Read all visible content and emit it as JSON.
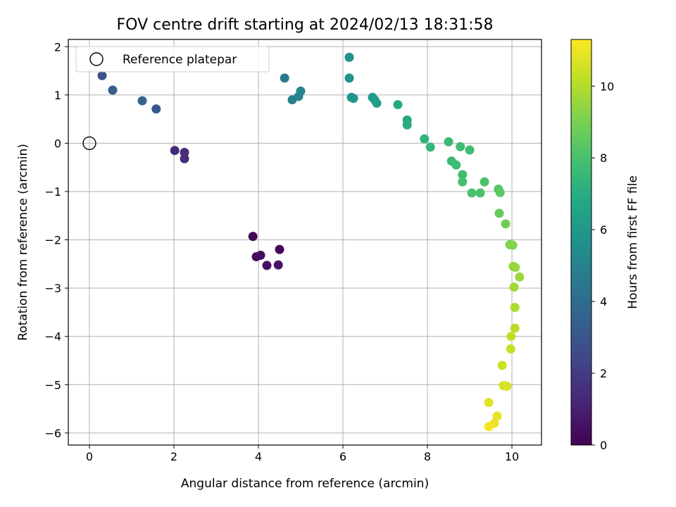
{
  "chart_data": {
    "type": "scatter",
    "title": "FOV centre drift starting at 2024/02/13 18:31:58",
    "xlabel": "Angular distance from reference (arcmin)",
    "ylabel": "Rotation from reference (arcmin)",
    "xlim": [
      -0.5,
      10.7
    ],
    "ylim": [
      -6.25,
      2.15
    ],
    "xticks": [
      0,
      2,
      4,
      6,
      8,
      10
    ],
    "xtick_labels": [
      "0",
      "2",
      "4",
      "6",
      "8",
      "10"
    ],
    "yticks": [
      2,
      1,
      0,
      -1,
      -2,
      -3,
      -4,
      -5,
      -6
    ],
    "ytick_labels": [
      "2",
      "1",
      "0",
      "−1",
      "−2",
      "−3",
      "−4",
      "−5",
      "−6"
    ],
    "grid": true,
    "legend": {
      "position": "top-left",
      "entries": [
        "Reference platepar"
      ]
    },
    "reference_point": {
      "x": 0,
      "y": 0
    },
    "colorbar": {
      "label": "Hours from first FF file",
      "colormap": "viridis",
      "range": [
        0,
        11.3
      ],
      "ticks": [
        0,
        2,
        4,
        6,
        8,
        10
      ],
      "tick_labels": [
        "0",
        "2",
        "4",
        "6",
        "8",
        "10"
      ]
    },
    "points": [
      {
        "x": 3.87,
        "y": -1.93,
        "c": 0.1
      },
      {
        "x": 4.5,
        "y": -2.2,
        "c": 0.2
      },
      {
        "x": 3.95,
        "y": -2.35,
        "c": 0.3
      },
      {
        "x": 4.05,
        "y": -2.32,
        "c": 0.4
      },
      {
        "x": 4.2,
        "y": -2.53,
        "c": 0.5
      },
      {
        "x": 4.47,
        "y": -2.52,
        "c": 0.6
      },
      {
        "x": 2.02,
        "y": -0.15,
        "c": 1.3
      },
      {
        "x": 2.25,
        "y": -0.19,
        "c": 1.4
      },
      {
        "x": 2.25,
        "y": -0.32,
        "c": 1.5
      },
      {
        "x": 0.3,
        "y": 1.4,
        "c": 2.9
      },
      {
        "x": 1.58,
        "y": 0.71,
        "c": 3.1
      },
      {
        "x": 0.55,
        "y": 1.1,
        "c": 3.4
      },
      {
        "x": 1.25,
        "y": 0.88,
        "c": 3.6
      },
      {
        "x": 4.62,
        "y": 1.35,
        "c": 4.6
      },
      {
        "x": 4.8,
        "y": 0.9,
        "c": 4.9
      },
      {
        "x": 4.95,
        "y": 0.97,
        "c": 5.0
      },
      {
        "x": 5.0,
        "y": 1.08,
        "c": 5.1
      },
      {
        "x": 6.15,
        "y": 1.78,
        "c": 5.6
      },
      {
        "x": 6.15,
        "y": 1.35,
        "c": 5.7
      },
      {
        "x": 6.2,
        "y": 0.95,
        "c": 5.9
      },
      {
        "x": 6.25,
        "y": 0.93,
        "c": 5.9
      },
      {
        "x": 6.7,
        "y": 0.95,
        "c": 6.2
      },
      {
        "x": 6.75,
        "y": 0.9,
        "c": 6.3
      },
      {
        "x": 6.8,
        "y": 0.83,
        "c": 6.4
      },
      {
        "x": 7.3,
        "y": 0.8,
        "c": 6.8
      },
      {
        "x": 7.52,
        "y": 0.48,
        "c": 6.9
      },
      {
        "x": 7.52,
        "y": 0.38,
        "c": 7.0
      },
      {
        "x": 7.93,
        "y": 0.09,
        "c": 7.3
      },
      {
        "x": 8.07,
        "y": -0.08,
        "c": 7.4
      },
      {
        "x": 8.5,
        "y": 0.03,
        "c": 7.6
      },
      {
        "x": 8.78,
        "y": -0.07,
        "c": 7.7
      },
      {
        "x": 9.0,
        "y": -0.14,
        "c": 7.8
      },
      {
        "x": 8.57,
        "y": -0.37,
        "c": 7.6
      },
      {
        "x": 8.68,
        "y": -0.45,
        "c": 7.7
      },
      {
        "x": 8.83,
        "y": -0.65,
        "c": 7.8
      },
      {
        "x": 8.83,
        "y": -0.8,
        "c": 7.9
      },
      {
        "x": 9.05,
        "y": -1.03,
        "c": 8.0
      },
      {
        "x": 9.25,
        "y": -1.03,
        "c": 8.0
      },
      {
        "x": 9.35,
        "y": -0.8,
        "c": 8.1
      },
      {
        "x": 9.68,
        "y": -0.95,
        "c": 8.3
      },
      {
        "x": 9.72,
        "y": -1.02,
        "c": 8.4
      },
      {
        "x": 9.7,
        "y": -1.45,
        "c": 8.6
      },
      {
        "x": 9.85,
        "y": -1.67,
        "c": 8.8
      },
      {
        "x": 9.95,
        "y": -2.1,
        "c": 9.1
      },
      {
        "x": 10.02,
        "y": -2.11,
        "c": 9.2
      },
      {
        "x": 10.03,
        "y": -2.55,
        "c": 9.5
      },
      {
        "x": 10.08,
        "y": -2.57,
        "c": 9.5
      },
      {
        "x": 10.18,
        "y": -2.77,
        "c": 9.6
      },
      {
        "x": 10.05,
        "y": -2.98,
        "c": 9.7
      },
      {
        "x": 10.07,
        "y": -3.4,
        "c": 9.9
      },
      {
        "x": 10.07,
        "y": -3.83,
        "c": 10.1
      },
      {
        "x": 9.98,
        "y": -4.0,
        "c": 10.2
      },
      {
        "x": 9.97,
        "y": -4.26,
        "c": 10.3
      },
      {
        "x": 9.77,
        "y": -4.6,
        "c": 10.4
      },
      {
        "x": 9.8,
        "y": -5.02,
        "c": 10.6
      },
      {
        "x": 9.88,
        "y": -5.03,
        "c": 10.6
      },
      {
        "x": 9.45,
        "y": -5.37,
        "c": 10.8
      },
      {
        "x": 9.65,
        "y": -5.65,
        "c": 10.9
      },
      {
        "x": 9.58,
        "y": -5.8,
        "c": 11.0
      },
      {
        "x": 9.45,
        "y": -5.87,
        "c": 11.1
      }
    ]
  }
}
